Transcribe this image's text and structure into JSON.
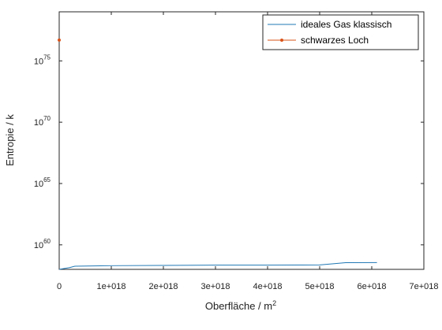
{
  "chart_data": {
    "type": "line",
    "xlabel": "Oberfläche / m",
    "xlabel_sup": "2",
    "ylabel": "Entropie / k",
    "xlim": [
      0,
      7e+18
    ],
    "ylim": [
      1e+58,
      1e+79
    ],
    "yscale": "log",
    "x_ticks": [
      {
        "value": 0,
        "label": "0"
      },
      {
        "value": 1e+18,
        "label": "1e+018"
      },
      {
        "value": 2e+18,
        "label": "2e+018"
      },
      {
        "value": 3e+18,
        "label": "3e+018"
      },
      {
        "value": 4e+18,
        "label": "4e+018"
      },
      {
        "value": 5e+18,
        "label": "5e+018"
      },
      {
        "value": 6e+18,
        "label": "6e+018"
      },
      {
        "value": 7e+18,
        "label": "7e+018"
      }
    ],
    "y_ticks": [
      {
        "value": 1e+60,
        "base": "10",
        "exp": "60"
      },
      {
        "value": 1e+65,
        "base": "10",
        "exp": "65"
      },
      {
        "value": 1e+70,
        "base": "10",
        "exp": "70"
      },
      {
        "value": 1e+75,
        "base": "10",
        "exp": "75"
      }
    ],
    "legend_position": "top-right",
    "grid": false,
    "series": [
      {
        "name": "ideales Gas klassisch",
        "color": "#1f77b4",
        "marker": false,
        "x": [
          0,
          2e+17,
          3e+17,
          1e+18,
          2e+18,
          3e+18,
          4e+18,
          5e+18,
          5.5e+18,
          6.1e+18
        ],
        "y": [
          1e+58,
          1.4e+58,
          1.8e+58,
          2e+58,
          2.1e+58,
          2.2e+58,
          2.2e+58,
          2.3e+58,
          3.5e+58,
          3.6e+58
        ]
      },
      {
        "name": "schwarzes Loch",
        "color": "#d95319",
        "marker": true,
        "x": [
          0
        ],
        "y": [
          5e+76
        ]
      }
    ]
  }
}
